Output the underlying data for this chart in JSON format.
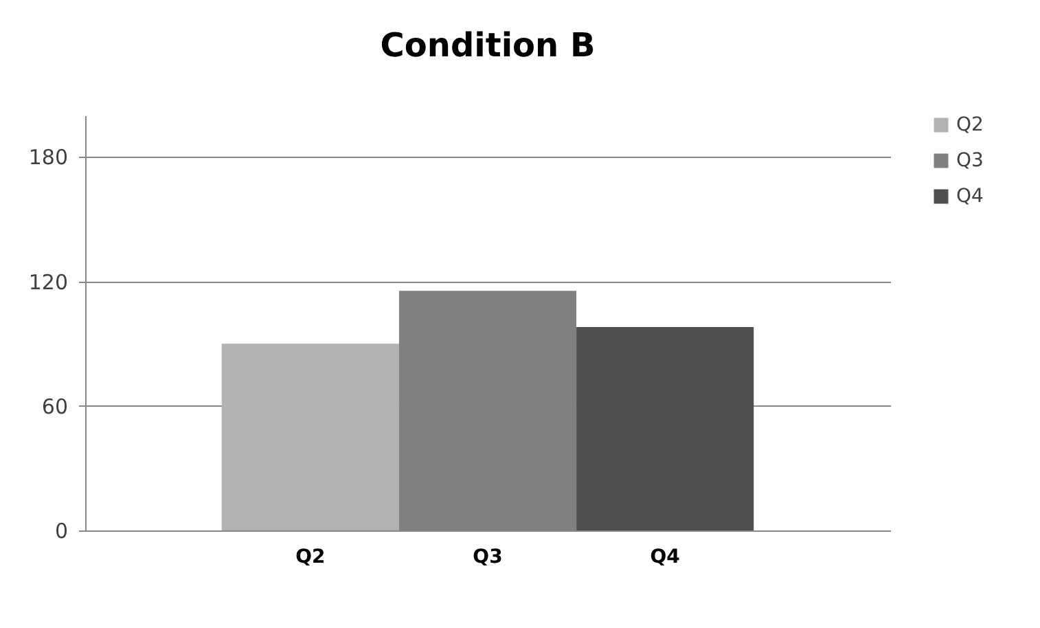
{
  "chart_data": {
    "type": "bar",
    "title": "Condition B",
    "categories": [
      "Q2",
      "Q3",
      "Q4"
    ],
    "series": [
      {
        "name": "Q2",
        "color": "#b2b2b2",
        "values": [
          90,
          null,
          null
        ]
      },
      {
        "name": "Q3",
        "color": "#808080",
        "values": [
          null,
          115.5,
          null
        ]
      },
      {
        "name": "Q4",
        "color": "#4f4f4f",
        "values": [
          null,
          null,
          98
        ]
      }
    ],
    "ylim": [
      0,
      200
    ],
    "yticks": [
      0,
      60,
      120,
      180
    ],
    "grid": "y",
    "legend": "right"
  }
}
